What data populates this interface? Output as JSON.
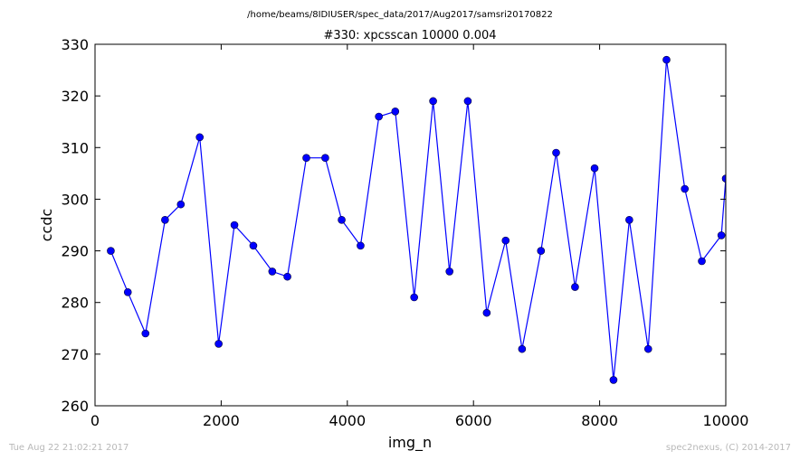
{
  "chart_data": {
    "type": "line",
    "suptitle": "/home/beams/8IDIUSER/spec_data/2017/Aug2017/samsri20170822",
    "title": "#330: xpcsscan 10000 0.004",
    "xlabel": "img_n",
    "ylabel": "ccdc",
    "xlim": [
      0,
      10000
    ],
    "ylim": [
      260,
      330
    ],
    "xticks": [
      "0",
      "2000",
      "4000",
      "6000",
      "8000",
      "10000"
    ],
    "yticks": [
      "260",
      "270",
      "280",
      "290",
      "300",
      "310",
      "320",
      "330"
    ],
    "grid": false,
    "series": [
      {
        "color": "#0000ff",
        "x": [
          250,
          520,
          800,
          1110,
          1360,
          1660,
          1960,
          2210,
          2510,
          2810,
          3050,
          3350,
          3650,
          3910,
          4210,
          4500,
          4760,
          5060,
          5360,
          5620,
          5910,
          6210,
          6510,
          6770,
          7070,
          7310,
          7610,
          7920,
          8220,
          8470,
          8770,
          9060,
          9350,
          9620,
          9930,
          10000
        ],
        "y": [
          290,
          282,
          274,
          296,
          299,
          312,
          272,
          295,
          291,
          286,
          285,
          308,
          308,
          296,
          291,
          316,
          317,
          281,
          319,
          286,
          319,
          278,
          292,
          271,
          290,
          309,
          283,
          306,
          265,
          296,
          271,
          327,
          302,
          288,
          293,
          304
        ]
      }
    ]
  },
  "footer": {
    "left": "Tue Aug 22 21:02:21 2017",
    "right": "spec2nexus, (C) 2014-2017"
  }
}
